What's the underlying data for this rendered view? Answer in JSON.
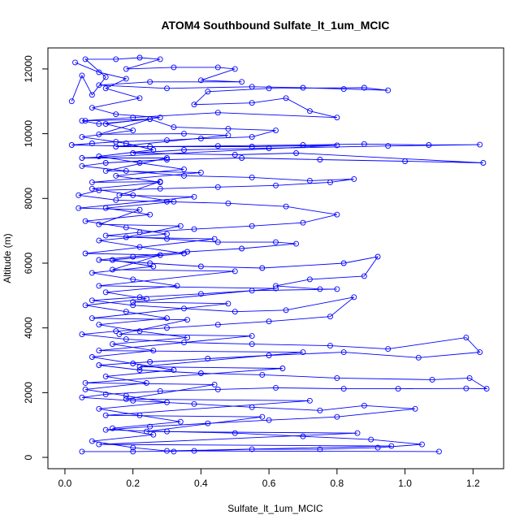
{
  "chart_data": {
    "type": "line",
    "title": "ATOM4 Southbound Sulfate_lt_1um_MCIC",
    "xlabel": "Sulfate_lt_1um_MCIC",
    "ylabel": "Altitude (m)",
    "xlim": [
      -0.05,
      1.29
    ],
    "ylim": [
      -350,
      12650
    ],
    "x_ticks": [
      0.0,
      0.2,
      0.4,
      0.6,
      0.8,
      1.0,
      1.2
    ],
    "x_tick_labels": [
      "0.0",
      "0.2",
      "0.4",
      "0.6",
      "0.8",
      "1.0",
      "1.2"
    ],
    "y_ticks": [
      0,
      2000,
      4000,
      6000,
      8000,
      10000,
      12000
    ],
    "y_tick_labels": [
      "0",
      "2000",
      "4000",
      "6000",
      "8000",
      "10000",
      "12000"
    ],
    "grid": false,
    "legend": "none",
    "marker": "open-circle",
    "color": "#0000ff",
    "series": [
      {
        "points": [
          [
            0.02,
            11000
          ],
          [
            0.05,
            11800
          ],
          [
            0.08,
            11200
          ],
          [
            0.12,
            11750
          ],
          [
            0.06,
            12300
          ],
          [
            0.15,
            12300
          ],
          [
            0.22,
            12350
          ],
          [
            0.28,
            12300
          ],
          [
            0.18,
            12000
          ],
          [
            0.32,
            12050
          ],
          [
            0.45,
            12050
          ],
          [
            0.5,
            12000
          ],
          [
            0.4,
            11650
          ],
          [
            0.52,
            11600
          ],
          [
            0.25,
            11600
          ],
          [
            0.1,
            11500
          ],
          [
            0.3,
            11400
          ],
          [
            0.55,
            11450
          ],
          [
            0.7,
            11420
          ],
          [
            0.82,
            11380
          ],
          [
            0.95,
            11340
          ],
          [
            0.88,
            11420
          ],
          [
            0.6,
            11400
          ],
          [
            0.42,
            11300
          ],
          [
            0.38,
            10900
          ],
          [
            0.55,
            10950
          ],
          [
            0.65,
            11100
          ],
          [
            0.72,
            10700
          ],
          [
            0.8,
            10500
          ],
          [
            0.45,
            10650
          ],
          [
            0.2,
            10500
          ],
          [
            0.05,
            10400
          ],
          [
            0.1,
            10300
          ],
          [
            0.25,
            10450
          ],
          [
            0.32,
            10200
          ],
          [
            0.48,
            10150
          ],
          [
            0.62,
            10100
          ],
          [
            0.55,
            9900
          ],
          [
            0.4,
            9850
          ],
          [
            0.3,
            9800
          ],
          [
            0.15,
            9750
          ],
          [
            0.08,
            9700
          ],
          [
            0.02,
            9650
          ],
          [
            0.25,
            9600
          ],
          [
            0.45,
            9620
          ],
          [
            0.7,
            9650
          ],
          [
            0.88,
            9680
          ],
          [
            1.07,
            9650
          ],
          [
            1.22,
            9660
          ],
          [
            0.95,
            9620
          ],
          [
            0.6,
            9550
          ],
          [
            0.35,
            9500
          ],
          [
            0.2,
            9400
          ],
          [
            0.5,
            9350
          ],
          [
            0.68,
            9400
          ],
          [
            1.23,
            9100
          ],
          [
            1.0,
            9150
          ],
          [
            0.75,
            9200
          ],
          [
            0.52,
            9250
          ],
          [
            0.3,
            9200
          ],
          [
            0.12,
            9100
          ],
          [
            0.05,
            9000
          ],
          [
            0.18,
            8850
          ],
          [
            0.35,
            8700
          ],
          [
            0.55,
            8650
          ],
          [
            0.72,
            8550
          ],
          [
            0.85,
            8600
          ],
          [
            0.78,
            8500
          ],
          [
            0.62,
            8400
          ],
          [
            0.45,
            8350
          ],
          [
            0.28,
            8300
          ],
          [
            0.1,
            8250
          ],
          [
            0.04,
            8100
          ],
          [
            0.15,
            7950
          ],
          [
            0.3,
            7900
          ],
          [
            0.48,
            7850
          ],
          [
            0.65,
            7750
          ],
          [
            0.8,
            7500
          ],
          [
            0.7,
            7250
          ],
          [
            0.55,
            7150
          ],
          [
            0.38,
            7050
          ],
          [
            0.22,
            6950
          ],
          [
            0.12,
            6850
          ],
          [
            0.3,
            6750
          ],
          [
            0.45,
            6650
          ],
          [
            0.62,
            6650
          ],
          [
            0.68,
            6600
          ],
          [
            0.52,
            6450
          ],
          [
            0.36,
            6350
          ],
          [
            0.2,
            6200
          ],
          [
            0.1,
            6100
          ],
          [
            0.25,
            6000
          ],
          [
            0.4,
            5900
          ],
          [
            0.58,
            5850
          ],
          [
            0.82,
            6000
          ],
          [
            0.92,
            6200
          ],
          [
            0.88,
            5600
          ],
          [
            0.72,
            5500
          ],
          [
            0.62,
            5300
          ],
          [
            0.75,
            5200
          ],
          [
            0.8,
            5200
          ],
          [
            0.55,
            5150
          ],
          [
            0.4,
            5050
          ],
          [
            0.22,
            4950
          ],
          [
            0.08,
            4850
          ],
          [
            0.2,
            4700
          ],
          [
            0.35,
            4600
          ],
          [
            0.5,
            4500
          ],
          [
            0.65,
            4550
          ],
          [
            0.85,
            4950
          ],
          [
            0.78,
            4350
          ],
          [
            0.6,
            4200
          ],
          [
            0.45,
            4100
          ],
          [
            0.3,
            4000
          ],
          [
            0.15,
            3900
          ],
          [
            0.05,
            3800
          ],
          [
            0.18,
            3650
          ],
          [
            0.35,
            3550
          ],
          [
            0.55,
            3500
          ],
          [
            0.78,
            3450
          ],
          [
            0.95,
            3350
          ],
          [
            1.18,
            3700
          ],
          [
            1.22,
            3250
          ],
          [
            1.04,
            3080
          ],
          [
            0.82,
            3250
          ],
          [
            0.6,
            3150
          ],
          [
            0.42,
            3050
          ],
          [
            0.25,
            2950
          ],
          [
            0.1,
            2850
          ],
          [
            0.22,
            2700
          ],
          [
            0.4,
            2600
          ],
          [
            0.58,
            2550
          ],
          [
            0.8,
            2450
          ],
          [
            1.08,
            2400
          ],
          [
            1.19,
            2450
          ],
          [
            1.24,
            2120
          ],
          [
            1.18,
            2130
          ],
          [
            0.98,
            2120
          ],
          [
            0.82,
            2120
          ],
          [
            0.62,
            2150
          ],
          [
            0.45,
            2100
          ],
          [
            0.28,
            2050
          ],
          [
            0.12,
            1950
          ],
          [
            0.05,
            1850
          ],
          [
            0.2,
            1750
          ],
          [
            0.38,
            1650
          ],
          [
            0.55,
            1550
          ],
          [
            0.75,
            1450
          ],
          [
            0.88,
            1600
          ],
          [
            1.03,
            1500
          ],
          [
            0.8,
            1250
          ],
          [
            0.6,
            1150
          ],
          [
            0.42,
            1050
          ],
          [
            0.25,
            950
          ],
          [
            0.12,
            850
          ],
          [
            0.3,
            800
          ],
          [
            0.5,
            750
          ],
          [
            0.7,
            650
          ],
          [
            0.9,
            550
          ],
          [
            1.05,
            400
          ],
          [
            0.92,
            300
          ],
          [
            0.75,
            250
          ],
          [
            0.55,
            250
          ],
          [
            0.38,
            200
          ],
          [
            0.2,
            180
          ],
          [
            0.05,
            180
          ]
        ]
      },
      {
        "points": [
          [
            0.03,
            12200
          ],
          [
            0.1,
            11900
          ],
          [
            0.18,
            11700
          ],
          [
            0.12,
            11400
          ],
          [
            0.22,
            11100
          ],
          [
            0.08,
            10800
          ],
          [
            0.15,
            10600
          ],
          [
            0.28,
            10500
          ],
          [
            0.12,
            10300
          ],
          [
            0.2,
            10100
          ],
          [
            0.05,
            9900
          ],
          [
            0.18,
            9700
          ],
          [
            0.26,
            9500
          ],
          [
            0.1,
            9300
          ],
          [
            0.22,
            9100
          ],
          [
            0.35,
            8900
          ],
          [
            0.15,
            8700
          ],
          [
            0.28,
            8500
          ],
          [
            0.08,
            8300
          ],
          [
            0.2,
            8100
          ],
          [
            0.32,
            7900
          ],
          [
            0.12,
            7700
          ],
          [
            0.25,
            7500
          ],
          [
            0.06,
            7300
          ],
          [
            0.18,
            7100
          ],
          [
            0.3,
            6900
          ],
          [
            0.1,
            6700
          ],
          [
            0.22,
            6500
          ],
          [
            0.35,
            6300
          ],
          [
            0.14,
            6100
          ],
          [
            0.26,
            5900
          ],
          [
            0.08,
            5700
          ],
          [
            0.2,
            5500
          ],
          [
            0.33,
            5300
          ],
          [
            0.12,
            5100
          ],
          [
            0.24,
            4900
          ],
          [
            0.06,
            4700
          ],
          [
            0.18,
            4500
          ],
          [
            0.3,
            4300
          ],
          [
            0.1,
            4100
          ],
          [
            0.22,
            3900
          ],
          [
            0.36,
            3700
          ],
          [
            0.14,
            3500
          ],
          [
            0.26,
            3300
          ],
          [
            0.08,
            3100
          ],
          [
            0.2,
            2900
          ],
          [
            0.32,
            2700
          ],
          [
            0.12,
            2500
          ],
          [
            0.24,
            2300
          ],
          [
            0.06,
            2100
          ],
          [
            0.18,
            1900
          ],
          [
            0.3,
            1700
          ],
          [
            0.1,
            1500
          ],
          [
            0.22,
            1300
          ],
          [
            0.34,
            1100
          ],
          [
            0.14,
            900
          ],
          [
            0.26,
            700
          ],
          [
            0.08,
            500
          ],
          [
            0.2,
            300
          ],
          [
            0.32,
            180
          ]
        ]
      },
      {
        "points": [
          [
            0.06,
            10400
          ],
          [
            0.25,
            10450
          ],
          [
            0.1,
            9980
          ],
          [
            0.35,
            10000
          ],
          [
            0.48,
            9950
          ],
          [
            0.15,
            9600
          ],
          [
            0.55,
            9600
          ],
          [
            0.8,
            9640
          ],
          [
            0.05,
            9250
          ],
          [
            0.3,
            9250
          ],
          [
            0.12,
            8850
          ],
          [
            0.4,
            8800
          ],
          [
            0.08,
            8500
          ],
          [
            0.28,
            8520
          ],
          [
            0.16,
            8100
          ],
          [
            0.38,
            8050
          ],
          [
            0.04,
            7700
          ],
          [
            0.22,
            7650
          ],
          [
            0.1,
            7200
          ],
          [
            0.34,
            7150
          ],
          [
            0.18,
            6800
          ],
          [
            0.44,
            6750
          ],
          [
            0.06,
            6300
          ],
          [
            0.28,
            6250
          ],
          [
            0.14,
            5800
          ],
          [
            0.5,
            5750
          ],
          [
            0.1,
            5300
          ],
          [
            0.62,
            5220
          ],
          [
            0.2,
            4800
          ],
          [
            0.48,
            4750
          ],
          [
            0.08,
            4300
          ],
          [
            0.36,
            4250
          ],
          [
            0.16,
            3800
          ],
          [
            0.55,
            3750
          ],
          [
            0.1,
            3300
          ],
          [
            0.7,
            3250
          ],
          [
            0.22,
            2800
          ],
          [
            0.64,
            2750
          ],
          [
            0.06,
            2300
          ],
          [
            0.44,
            2250
          ],
          [
            0.18,
            1800
          ],
          [
            0.72,
            1750
          ],
          [
            0.12,
            1300
          ],
          [
            0.58,
            1250
          ],
          [
            0.24,
            800
          ],
          [
            0.86,
            750
          ],
          [
            0.1,
            400
          ],
          [
            0.96,
            350
          ],
          [
            0.3,
            200
          ],
          [
            1.1,
            180
          ]
        ]
      }
    ]
  }
}
